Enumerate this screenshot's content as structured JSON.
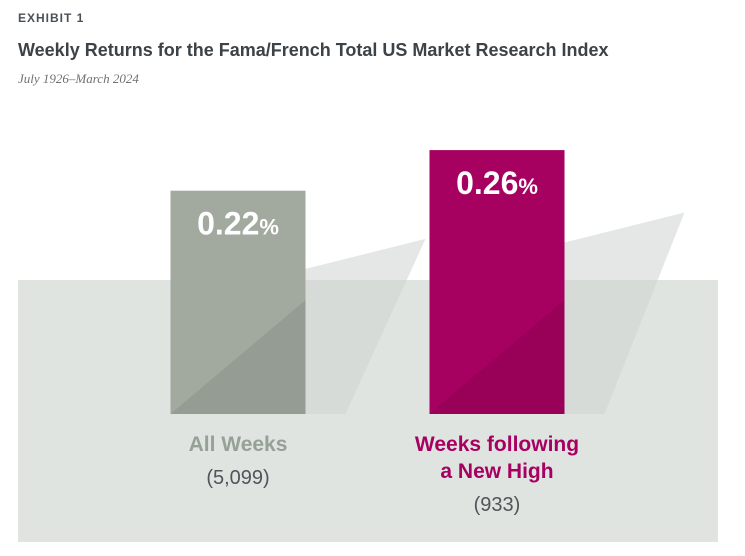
{
  "header": {
    "exhibit": "EXHIBIT 1",
    "title": "Weekly Returns for the Fama/French Total US Market Research Index",
    "subtitle": "July 1926–March 2024"
  },
  "colors": {
    "all_weeks": "#a2aaa0",
    "new_high": "#a60060",
    "backdrop": "#dfe4e1",
    "label_all": "#96a096",
    "label_new": "#a60060"
  },
  "chart_data": {
    "type": "bar",
    "categories": [
      "All Weeks",
      "Weeks following a New High"
    ],
    "category_lines": [
      [
        "All Weeks"
      ],
      [
        "Weeks following",
        "a New High"
      ]
    ],
    "counts": [
      "(5,099)",
      "(933)"
    ],
    "values": [
      0.22,
      0.26
    ],
    "value_labels": [
      "0.22",
      "0.26"
    ],
    "unit": "%",
    "xlabel": "",
    "ylabel": "",
    "grid": false
  }
}
